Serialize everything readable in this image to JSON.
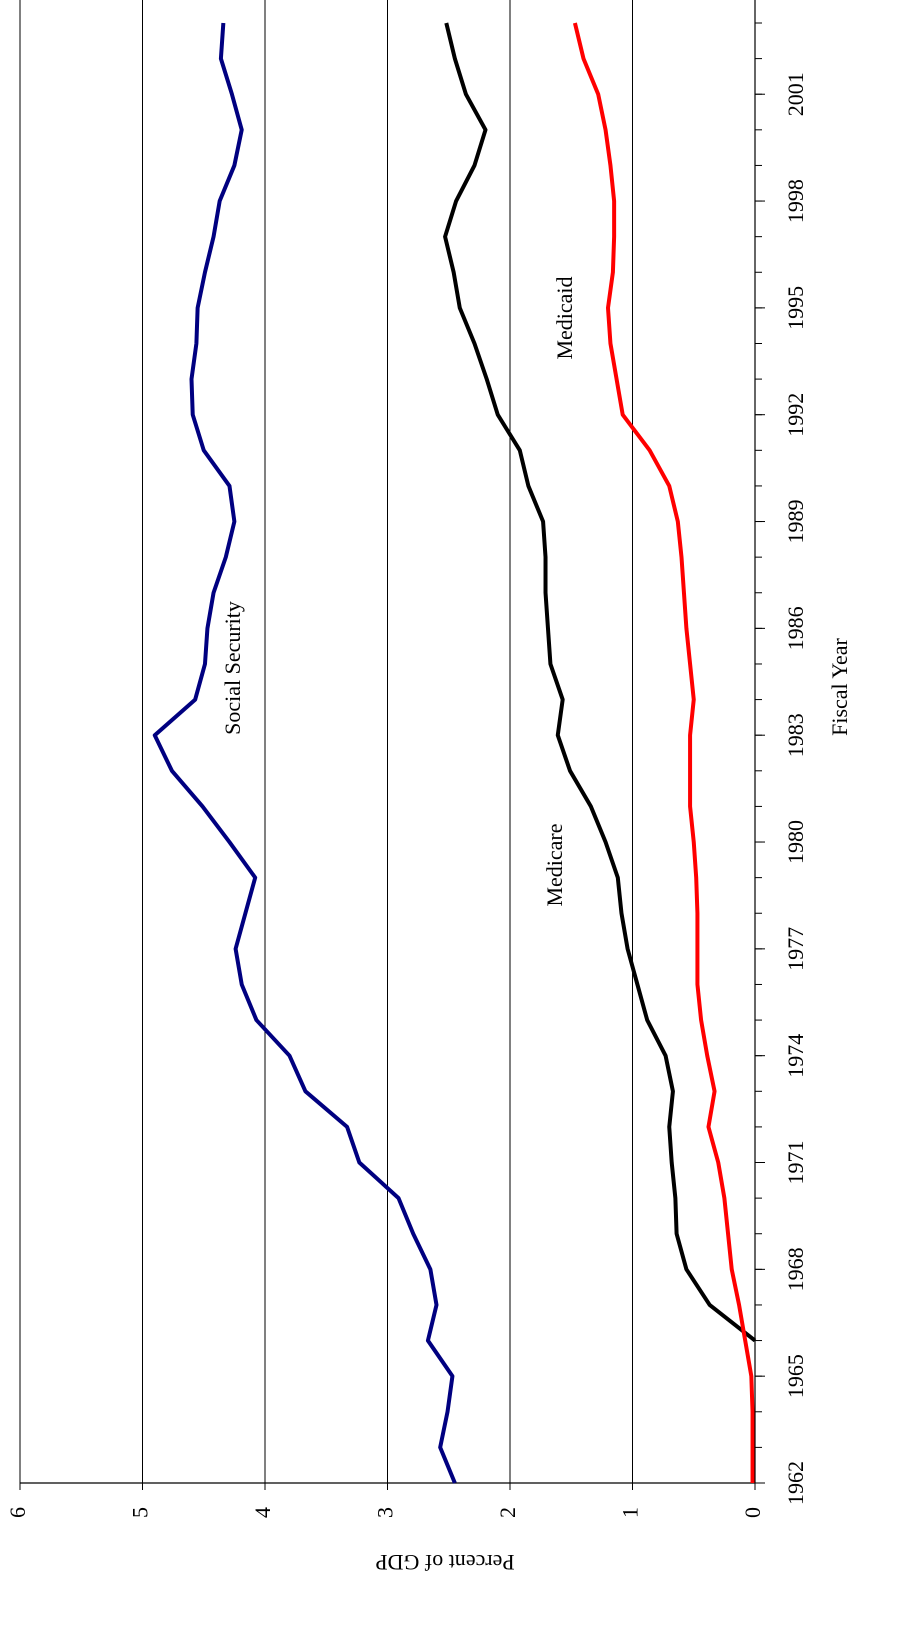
{
  "chart_data": {
    "type": "line",
    "x": [
      1962,
      1963,
      1964,
      1965,
      1966,
      1967,
      1968,
      1969,
      1970,
      1971,
      1972,
      1973,
      1974,
      1975,
      1976,
      1977,
      1978,
      1979,
      1980,
      1981,
      1982,
      1983,
      1984,
      1985,
      1986,
      1987,
      1988,
      1989,
      1990,
      1991,
      1992,
      1993,
      1994,
      1995,
      1996,
      1997,
      1998,
      1999,
      2000,
      2001,
      2002,
      2003
    ],
    "series": [
      {
        "name": "Social Security",
        "color": "#000080",
        "values": [
          2.45,
          2.57,
          2.51,
          2.47,
          2.67,
          2.6,
          2.65,
          2.79,
          2.91,
          3.23,
          3.33,
          3.67,
          3.8,
          4.07,
          4.19,
          4.24,
          4.16,
          4.08,
          4.29,
          4.51,
          4.76,
          4.9,
          4.57,
          4.49,
          4.47,
          4.42,
          4.32,
          4.25,
          4.29,
          4.5,
          4.59,
          4.6,
          4.56,
          4.55,
          4.49,
          4.42,
          4.37,
          4.25,
          4.19,
          4.27,
          4.36,
          4.34
        ]
      },
      {
        "name": "Medicare",
        "color": "#000000",
        "values": [
          null,
          null,
          null,
          null,
          0,
          0.37,
          0.56,
          0.64,
          0.65,
          0.68,
          0.7,
          0.67,
          0.73,
          0.88,
          0.96,
          1.04,
          1.09,
          1.12,
          1.22,
          1.34,
          1.51,
          1.61,
          1.57,
          1.67,
          1.69,
          1.71,
          1.71,
          1.73,
          1.85,
          1.92,
          2.1,
          2.19,
          2.29,
          2.41,
          2.46,
          2.53,
          2.44,
          2.29,
          2.2,
          2.36,
          2.45,
          2.52
        ]
      },
      {
        "name": "Medicaid",
        "color": "#ff0000",
        "values": [
          0.02,
          0.02,
          0.02,
          0.03,
          0.08,
          0.13,
          0.19,
          0.22,
          0.25,
          0.3,
          0.38,
          0.33,
          0.39,
          0.44,
          0.47,
          0.47,
          0.47,
          0.48,
          0.5,
          0.53,
          0.53,
          0.53,
          0.5,
          0.53,
          0.56,
          0.58,
          0.6,
          0.63,
          0.7,
          0.86,
          1.08,
          1.13,
          1.18,
          1.2,
          1.16,
          1.15,
          1.15,
          1.18,
          1.22,
          1.28,
          1.4,
          1.47
        ]
      }
    ],
    "xlabel": "Fiscal Year",
    "ylabel": "Percent of GDP",
    "xlim": [
      1962,
      2003
    ],
    "xticks": [
      1962,
      1965,
      1968,
      1971,
      1974,
      1977,
      1980,
      1983,
      1986,
      1989,
      1992,
      1995,
      1998,
      2001
    ],
    "ylim": [
      0,
      6
    ],
    "yticks": [
      0,
      1,
      2,
      3,
      4,
      5,
      6
    ],
    "grid": true
  }
}
